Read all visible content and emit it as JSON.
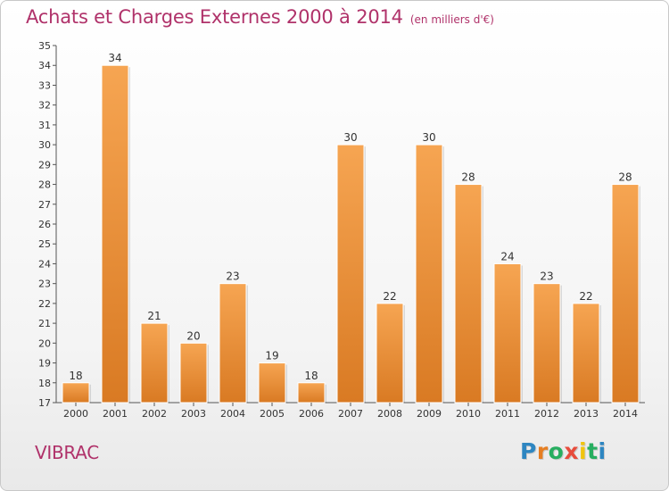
{
  "header": {
    "title": "Achats et Charges Externes 2000 à 2014",
    "unit": "(en milliers d'€)"
  },
  "subject": "VIBRAC",
  "logo": {
    "letters": [
      "P",
      "r",
      "o",
      "x",
      "i",
      "t",
      "i"
    ],
    "colors": [
      "#2e86c1",
      "#e67e22",
      "#27ae60",
      "#e74c3c",
      "#f1c40f",
      "#27ae60",
      "#2e86c1"
    ]
  },
  "colors": {
    "bar_light": "#f6a552",
    "bar_dark": "#d97a23",
    "title": "#b0326a"
  },
  "chart_data": {
    "type": "bar",
    "title": "Achats et Charges Externes 2000 à 2014",
    "xlabel": "",
    "ylabel": "",
    "categories": [
      "2000",
      "2001",
      "2002",
      "2003",
      "2004",
      "2005",
      "2006",
      "2007",
      "2008",
      "2009",
      "2010",
      "2011",
      "2012",
      "2013",
      "2014"
    ],
    "values": [
      18,
      34,
      21,
      20,
      23,
      19,
      18,
      30,
      22,
      30,
      28,
      24,
      23,
      22,
      28
    ],
    "ylim": [
      17,
      35
    ],
    "yticks": [
      17,
      18,
      19,
      20,
      21,
      22,
      23,
      24,
      25,
      26,
      27,
      28,
      29,
      30,
      31,
      32,
      33,
      34,
      35
    ],
    "grid": false,
    "legend": "none"
  }
}
